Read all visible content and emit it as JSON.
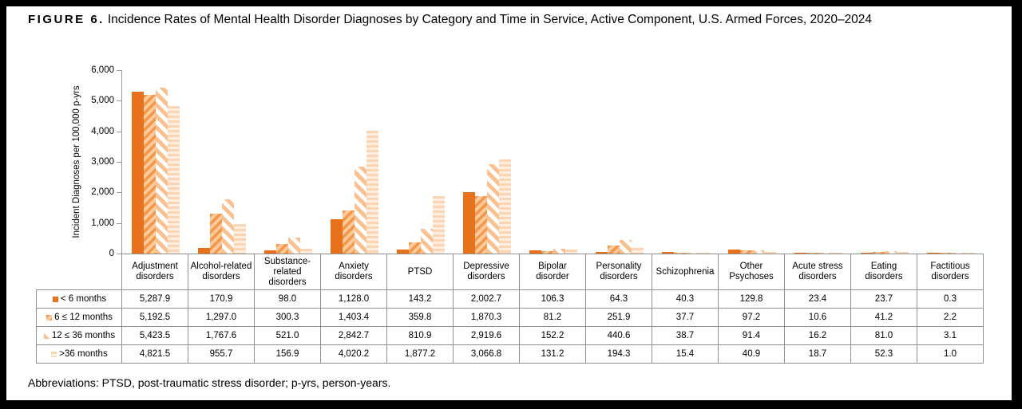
{
  "figure": {
    "label": "FIGURE 6.",
    "title": "Incidence Rates of Mental Health Disorder Diagnoses by Category and Time in Service, Active Component, U.S. Armed Forces, 2020–2024",
    "footnote": "Abbreviations: PTSD, post-traumatic stress disorder; p-yrs, person-years."
  },
  "chart_data": {
    "type": "bar",
    "title": "Incidence Rates of Mental Health Disorder Diagnoses by Category and Time in Service, Active Component, U.S. Armed Forces, 2020–2024",
    "ylabel": "Incident Diagnoses per 100,000 p-yrs",
    "ylim": [
      0,
      6000
    ],
    "ytick_step": 1000,
    "grid": false,
    "legend_position": "data-table-left-column",
    "axis_color": "#9a9a9a",
    "table_border_color": "#8f8f8f",
    "categories": [
      "Adjustment disorders",
      "Alcohol-related disorders",
      "Substance-related disorders",
      "Anxiety disorders",
      "PTSD",
      "Depressive disorders",
      "Bipolar disorder",
      "Personality disorders",
      "Schizophrenia",
      "Other Psychoses",
      "Acute stress disorders",
      "Eating disorders",
      "Factitious disorders"
    ],
    "series": [
      {
        "name": "< 6 months",
        "fill": {
          "pattern": "solid",
          "fg": "#E8711C",
          "bg": "#E8711C"
        },
        "values": [
          5287.9,
          170.9,
          98.0,
          1128.0,
          143.2,
          2002.7,
          106.3,
          64.3,
          40.3,
          129.8,
          23.4,
          23.7,
          0.3
        ]
      },
      {
        "name": "6 ≤ 12 months",
        "fill": {
          "pattern": "diag-up",
          "fg": "#F79646",
          "bg": "#FBCB9E"
        },
        "values": [
          5192.5,
          1297.0,
          300.3,
          1403.4,
          359.8,
          1870.3,
          81.2,
          251.9,
          37.7,
          97.2,
          10.6,
          41.2,
          2.2
        ]
      },
      {
        "name": "12 ≤ 36 months",
        "fill": {
          "pattern": "diag-down",
          "fg": "#FAC090",
          "bg": "#FFFFFF"
        },
        "values": [
          5423.5,
          1767.6,
          521.0,
          2842.7,
          810.9,
          2919.6,
          152.2,
          440.6,
          38.7,
          91.4,
          16.2,
          81.0,
          3.1
        ]
      },
      {
        "name": ">36 months",
        "fill": {
          "pattern": "horizontal",
          "fg": "#FBD4B4",
          "bg": "#FDEEDF"
        },
        "values": [
          4821.5,
          955.7,
          156.9,
          4020.2,
          1877.2,
          3066.8,
          131.2,
          194.3,
          15.4,
          40.9,
          18.7,
          52.3,
          1.0
        ]
      }
    ]
  }
}
